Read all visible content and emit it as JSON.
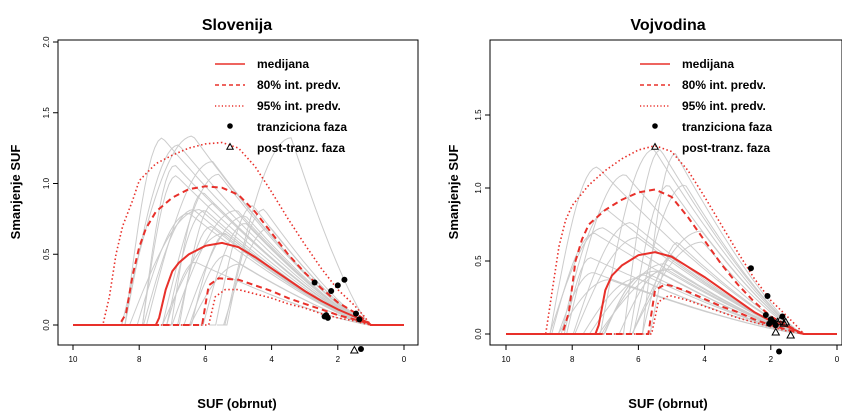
{
  "legend": {
    "median": "medijana",
    "pi80": "80% int. predv.",
    "pi95": "95% int. predv.",
    "transition": "tranziciona faza",
    "post_transition": "post-tranz. faza"
  },
  "colors": {
    "interval": "#e8302a",
    "trajectory": "#cccccc",
    "points": "#000000"
  },
  "chart_data": [
    {
      "type": "line",
      "title": "Slovenija",
      "xlabel": "SUF (obrnut)",
      "ylabel": "Smanjenje SUF",
      "xlim": [
        10,
        0
      ],
      "ylim": [
        -0.2,
        2.0
      ],
      "xticks": [
        "10",
        "8",
        "6",
        "4",
        "2",
        "0"
      ],
      "yticks": [
        "0.0",
        "0.5",
        "1.0",
        "1.5",
        "2.0"
      ],
      "series": [
        {
          "name": "medijana",
          "style": "solid",
          "x": [
            10,
            7.5,
            7.4,
            7.2,
            7.0,
            6.8,
            6.5,
            6.0,
            5.5,
            5.0,
            4.5,
            4.0,
            3.5,
            3.0,
            2.5,
            2.0,
            1.5,
            1.2,
            1.0,
            0
          ],
          "y": [
            0,
            0,
            0.05,
            0.25,
            0.38,
            0.44,
            0.5,
            0.56,
            0.58,
            0.55,
            0.48,
            0.4,
            0.32,
            0.24,
            0.17,
            0.11,
            0.06,
            0.03,
            0,
            0
          ]
        },
        {
          "name": "80% int. predv.",
          "style": "dashed",
          "x": [
            10,
            8.6,
            8.4,
            8.2,
            8.0,
            7.8,
            7.5,
            7.0,
            6.5,
            6.0,
            5.5,
            5.0,
            4.5,
            4.0,
            3.5,
            3.0,
            2.5,
            2.0,
            1.5,
            1.2,
            1.0,
            0
          ],
          "y": [
            0,
            0,
            0.08,
            0.35,
            0.55,
            0.68,
            0.8,
            0.9,
            0.96,
            0.98,
            0.97,
            0.92,
            0.8,
            0.65,
            0.5,
            0.37,
            0.26,
            0.16,
            0.09,
            0.04,
            0,
            0
          ]
        },
        {
          "name": "80% int. predv.",
          "style": "dashed",
          "x": [
            10,
            6.1,
            5.9,
            5.6,
            5.0,
            4.5,
            4.0,
            3.5,
            3.0,
            2.5,
            2.0,
            1.5,
            1.2,
            1.0,
            0
          ],
          "y": [
            0,
            0,
            0.28,
            0.33,
            0.32,
            0.28,
            0.24,
            0.19,
            0.15,
            0.11,
            0.07,
            0.04,
            0.02,
            0,
            0
          ]
        },
        {
          "name": "95% int. predv.",
          "style": "dotted",
          "x": [
            10,
            9.1,
            8.9,
            8.7,
            8.5,
            8.2,
            8.0,
            7.5,
            7.0,
            6.5,
            6.0,
            5.5,
            5.0,
            4.5,
            4.0,
            3.5,
            3.0,
            2.5,
            2.0,
            1.5,
            1.2,
            1.0,
            0
          ],
          "y": [
            0,
            0,
            0.2,
            0.5,
            0.7,
            0.88,
            1.02,
            1.14,
            1.2,
            1.25,
            1.28,
            1.29,
            1.25,
            1.12,
            0.94,
            0.75,
            0.57,
            0.4,
            0.25,
            0.14,
            0.06,
            0,
            0
          ]
        },
        {
          "name": "95% int. predv.",
          "style": "dotted",
          "x": [
            10,
            5.9,
            5.7,
            5.4,
            5.0,
            4.5,
            4.0,
            3.5,
            3.0,
            2.5,
            2.0,
            1.5,
            1.2,
            1.0,
            0
          ],
          "y": [
            0,
            0,
            0.2,
            0.25,
            0.25,
            0.22,
            0.19,
            0.15,
            0.12,
            0.08,
            0.05,
            0.03,
            0.01,
            0,
            0
          ]
        }
      ],
      "transition_points": {
        "x": [
          2.7,
          2.4,
          2.35,
          2.3,
          2.2,
          2.0,
          1.8,
          1.45,
          1.35,
          1.3
        ],
        "y": [
          0.3,
          0.06,
          0.07,
          0.05,
          0.24,
          0.28,
          0.32,
          0.08,
          0.04,
          -0.17
        ]
      },
      "post_transition_points": {
        "x": [
          1.5
        ],
        "y": [
          -0.18
        ]
      }
    },
    {
      "type": "line",
      "title": "Vojvodina",
      "xlabel": "SUF (obrnut)",
      "ylabel": "Smanjenje SUF",
      "xlim": [
        10,
        0
      ],
      "ylim": [
        -0.2,
        2.0
      ],
      "xticks": [
        "10",
        "8",
        "6",
        "4",
        "2",
        "0"
      ],
      "yticks": [
        "0.0",
        "0.5",
        "1.0",
        "1.5"
      ],
      "series": [
        {
          "name": "medijana",
          "style": "solid",
          "x": [
            10,
            7.3,
            7.2,
            7.0,
            6.8,
            6.5,
            6.0,
            5.5,
            5.0,
            4.5,
            4.0,
            3.5,
            3.0,
            2.5,
            2.0,
            1.5,
            1.2,
            1.0,
            0
          ],
          "y": [
            0,
            0,
            0.06,
            0.3,
            0.4,
            0.47,
            0.54,
            0.56,
            0.53,
            0.46,
            0.39,
            0.31,
            0.23,
            0.15,
            0.09,
            0.05,
            0.02,
            0,
            0
          ]
        },
        {
          "name": "80% int. predv.",
          "style": "dashed",
          "x": [
            10,
            8.3,
            8.1,
            7.9,
            7.7,
            7.5,
            7.0,
            6.5,
            6.0,
            5.5,
            5.0,
            4.5,
            4.0,
            3.5,
            3.0,
            2.5,
            2.0,
            1.5,
            1.2,
            1.0,
            0
          ],
          "y": [
            0,
            0,
            0.15,
            0.5,
            0.65,
            0.75,
            0.85,
            0.92,
            0.97,
            0.99,
            0.94,
            0.8,
            0.64,
            0.48,
            0.34,
            0.22,
            0.12,
            0.06,
            0.02,
            0,
            0
          ]
        },
        {
          "name": "80% int. predv.",
          "style": "dashed",
          "x": [
            10,
            5.7,
            5.5,
            5.2,
            5.0,
            4.5,
            4.0,
            3.5,
            3.0,
            2.5,
            2.0,
            1.5,
            1.2,
            1.0,
            0
          ],
          "y": [
            0,
            0,
            0.3,
            0.34,
            0.33,
            0.29,
            0.24,
            0.19,
            0.15,
            0.1,
            0.06,
            0.03,
            0.01,
            0,
            0
          ]
        },
        {
          "name": "95% int. predv.",
          "style": "dotted",
          "x": [
            10,
            8.8,
            8.6,
            8.4,
            8.2,
            8.0,
            7.5,
            7.0,
            6.5,
            6.0,
            5.5,
            5.0,
            4.5,
            4.0,
            3.5,
            3.0,
            2.5,
            2.0,
            1.5,
            1.2,
            1.0,
            0
          ],
          "y": [
            0,
            0,
            0.3,
            0.6,
            0.78,
            0.88,
            1.02,
            1.12,
            1.2,
            1.26,
            1.29,
            1.25,
            1.12,
            0.94,
            0.75,
            0.56,
            0.38,
            0.23,
            0.12,
            0.05,
            0,
            0
          ]
        },
        {
          "name": "95% int. predv.",
          "style": "dotted",
          "x": [
            10,
            5.6,
            5.4,
            5.1,
            5.0,
            4.5,
            4.0,
            3.5,
            3.0,
            2.5,
            2.0,
            1.5,
            1.2,
            1.0,
            0
          ],
          "y": [
            0,
            0,
            0.22,
            0.26,
            0.26,
            0.23,
            0.19,
            0.15,
            0.11,
            0.08,
            0.05,
            0.02,
            0.01,
            0,
            0
          ]
        }
      ],
      "transition_points": {
        "x": [
          2.6,
          2.15,
          2.05,
          2.1,
          2.0,
          1.9,
          1.85,
          1.75,
          1.65
        ],
        "y": [
          0.45,
          0.13,
          0.07,
          0.26,
          0.1,
          0.08,
          0.06,
          -0.12,
          0.12
        ]
      },
      "post_transition_points": {
        "x": [
          1.95,
          1.8,
          1.7,
          1.6,
          1.55,
          1.4,
          1.85
        ],
        "y": [
          0.09,
          0.08,
          0.1,
          0.07,
          0.08,
          -0.01,
          0.01
        ]
      }
    }
  ]
}
